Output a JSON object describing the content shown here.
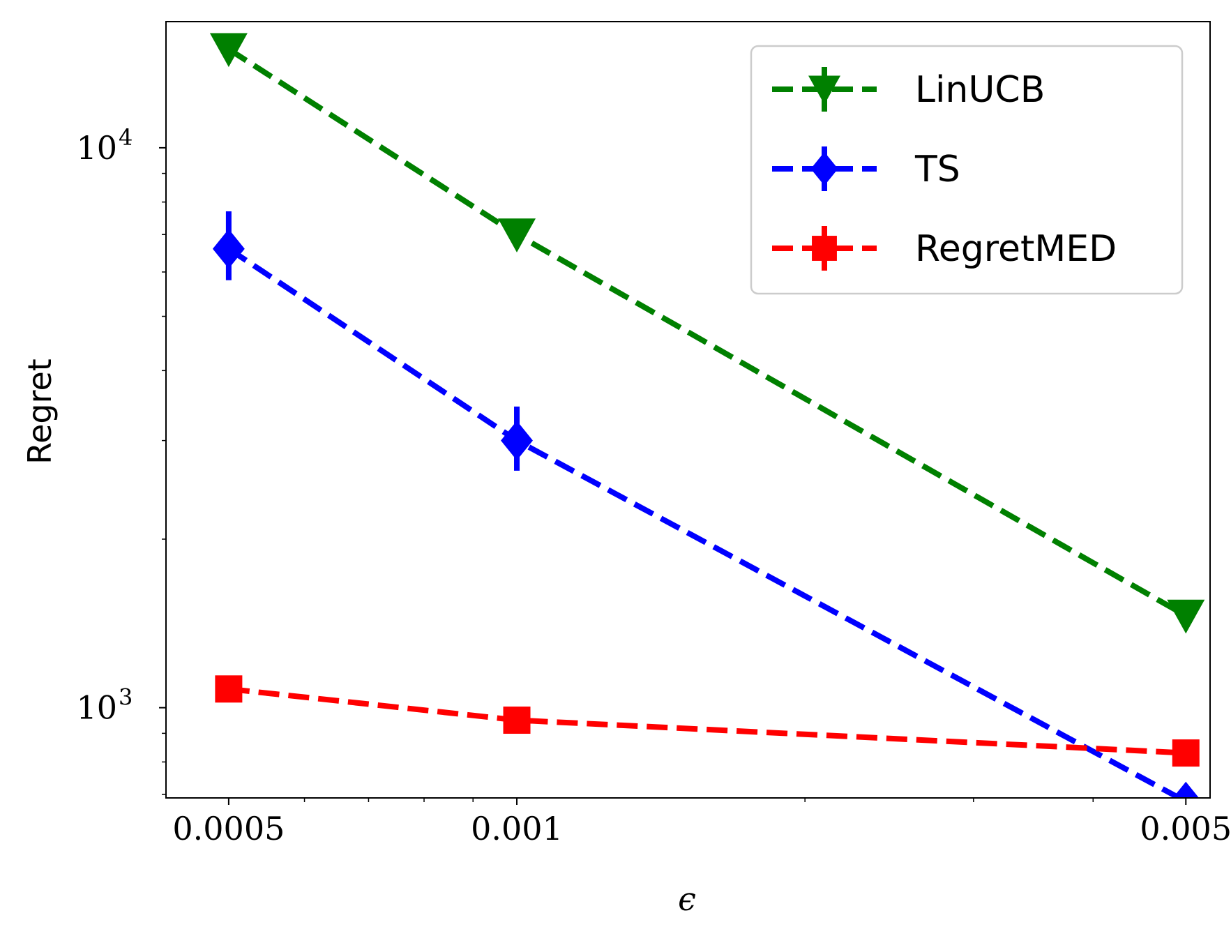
{
  "chart_data": {
    "type": "line",
    "xscale": "log",
    "yscale": "log",
    "x": [
      0.0005,
      0.001,
      0.005
    ],
    "xticks": [
      {
        "value": 0.0005,
        "label": "0.0005"
      },
      {
        "value": 0.001,
        "label": "0.001"
      },
      {
        "value": 0.005,
        "label": "0.005"
      }
    ],
    "yticks": [
      {
        "value": 1000,
        "base": "10",
        "exp": "3"
      },
      {
        "value": 10000,
        "base": "10",
        "exp": "4"
      }
    ],
    "xlim": [
      0.00043,
      0.0053
    ],
    "ylim": [
      690,
      16800
    ],
    "xlabel": "ϵ",
    "ylabel": "Regret",
    "grid": false,
    "legend": "top-right",
    "series": [
      {
        "name": "LinUCB",
        "color": "#008000",
        "marker": "triangle-down",
        "values": [
          15000,
          7000,
          1460
        ],
        "err_low": [
          0,
          0,
          0
        ],
        "err_high": [
          0,
          0,
          0
        ]
      },
      {
        "name": "TS",
        "color": "#0000ff",
        "marker": "diamond",
        "values": [
          6600,
          3000,
          680
        ],
        "err_low": [
          5800,
          2650,
          610
        ],
        "err_high": [
          7700,
          3450,
          700
        ]
      },
      {
        "name": "RegretMED",
        "color": "#ff0000",
        "marker": "square",
        "values": [
          1080,
          950,
          830
        ],
        "err_low": [
          1080,
          950,
          790
        ],
        "err_high": [
          1080,
          950,
          870
        ]
      }
    ]
  }
}
